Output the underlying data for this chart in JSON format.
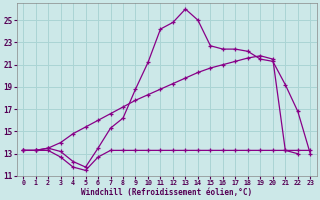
{
  "xlabel": "Windchill (Refroidissement éolien,°C)",
  "bg_color": "#cce8e8",
  "grid_color": "#aad4d4",
  "line_color": "#880088",
  "xlim": [
    -0.5,
    23.5
  ],
  "ylim": [
    11,
    26.5
  ],
  "xticks": [
    0,
    1,
    2,
    3,
    4,
    5,
    6,
    7,
    8,
    9,
    10,
    11,
    12,
    13,
    14,
    15,
    16,
    17,
    18,
    19,
    20,
    21,
    22,
    23
  ],
  "yticks": [
    11,
    13,
    15,
    17,
    19,
    21,
    23,
    25
  ],
  "series1": {
    "x": [
      0,
      1,
      2,
      3,
      4,
      5,
      6,
      7,
      8,
      9,
      10,
      11,
      12,
      13,
      14,
      15,
      16,
      17,
      18,
      19,
      20,
      21,
      22,
      23
    ],
    "y": [
      13.3,
      13.3,
      13.3,
      12.7,
      11.8,
      11.5,
      12.7,
      13.3,
      13.3,
      13.3,
      13.3,
      13.3,
      13.3,
      13.3,
      13.3,
      13.3,
      13.3,
      13.3,
      13.3,
      13.3,
      13.3,
      13.3,
      13.3,
      13.3
    ]
  },
  "series2": {
    "x": [
      0,
      1,
      2,
      3,
      4,
      5,
      6,
      7,
      8,
      9,
      10,
      11,
      12,
      13,
      14,
      15,
      16,
      17,
      18,
      19,
      20,
      21,
      22
    ],
    "y": [
      13.3,
      13.3,
      13.5,
      14.0,
      14.8,
      15.4,
      16.0,
      16.6,
      17.2,
      17.8,
      18.3,
      18.8,
      19.3,
      19.8,
      20.3,
      20.7,
      21.0,
      21.3,
      21.6,
      21.8,
      21.5,
      13.3,
      13.0
    ]
  },
  "series3": {
    "x": [
      0,
      1,
      2,
      3,
      4,
      5,
      6,
      7,
      8,
      9,
      10,
      11,
      12,
      13,
      14,
      15,
      16,
      17,
      18,
      19,
      20,
      21,
      22,
      23
    ],
    "y": [
      13.3,
      13.3,
      13.5,
      13.2,
      12.3,
      11.8,
      13.5,
      15.3,
      16.2,
      18.8,
      21.2,
      24.2,
      24.8,
      26.0,
      25.0,
      22.7,
      22.4,
      22.4,
      22.2,
      21.5,
      21.3,
      19.2,
      16.8,
      13.0
    ]
  }
}
